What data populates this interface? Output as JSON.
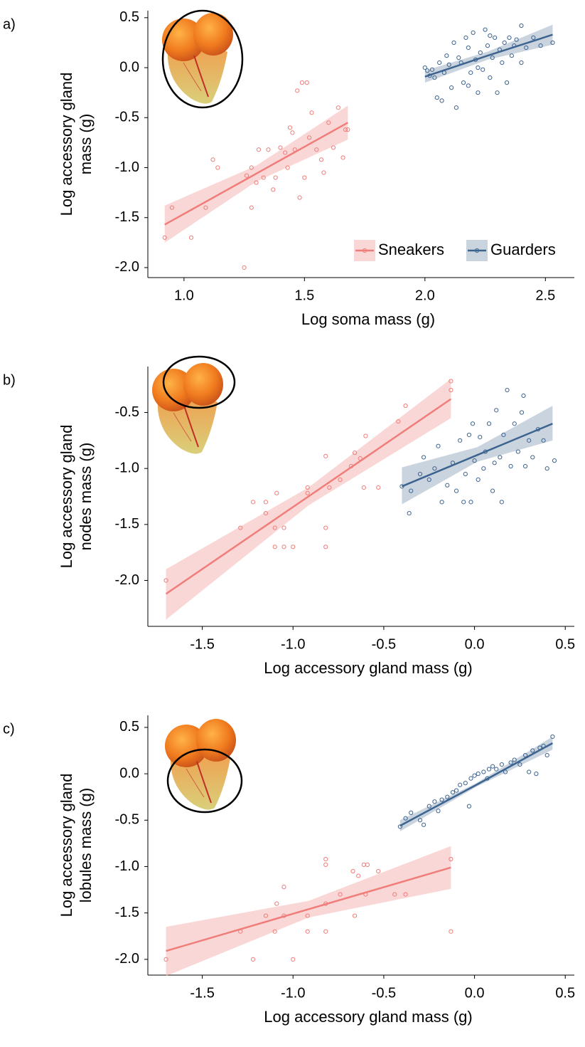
{
  "chart_data": [
    {
      "type": "scatter",
      "panel": "a)",
      "xlabel": "Log soma mass (g)",
      "ylabel": [
        "Log accessory gland",
        "mass (g)"
      ],
      "xlim": [
        0.85,
        2.62
      ],
      "ylim": [
        -2.1,
        0.57
      ],
      "xticks": [
        {
          "value": 1,
          "label": "1.0"
        },
        1.5,
        {
          "value": 2,
          "label": "2.0"
        },
        2.5
      ],
      "yticks": [
        0.5,
        {
          "value": 0,
          "label": "0.0"
        },
        -0.5,
        {
          "value": -1,
          "label": "-1.0"
        },
        -1.5,
        {
          "value": -2,
          "label": "-2.0"
        }
      ],
      "legend": "lower right",
      "series": [
        {
          "name": "Sneakers",
          "color": "#f07d7a",
          "band_color": "#f4b6b4",
          "x": [
            0.92,
            0.95,
            1.03,
            1.09,
            1.12,
            1.14,
            1.25,
            1.28,
            1.28,
            1.3,
            1.31,
            1.33,
            1.35,
            1.37,
            1.4,
            1.42,
            1.44,
            1.45,
            1.46,
            1.47,
            1.48,
            1.49,
            1.5,
            1.51,
            1.52,
            1.53,
            1.55,
            1.57,
            1.58,
            1.6,
            1.62,
            1.64,
            1.66,
            1.68,
            1.67,
            1.38,
            1.26,
            1.43
          ],
          "values": [
            -1.7,
            -1.4,
            -1.7,
            -1.4,
            -0.92,
            -1.0,
            -2.0,
            -1.4,
            -1.0,
            -1.15,
            -0.82,
            -1.1,
            -0.82,
            -1.22,
            -0.8,
            -0.85,
            -0.6,
            -0.65,
            -0.82,
            -0.23,
            -1.3,
            -0.15,
            -1.1,
            -0.15,
            -0.7,
            -0.45,
            -0.82,
            -0.92,
            -1.05,
            -0.55,
            -0.8,
            -0.4,
            -0.9,
            -0.62,
            -0.62,
            -1.1,
            -1.08,
            -1.0
          ],
          "fit": {
            "x": [
              0.92,
              1.3,
              1.68
            ],
            "y": [
              -1.57,
              -1.06,
              -0.55
            ],
            "lower": [
              -1.75,
              -1.14,
              -0.72
            ],
            "upper": [
              -1.38,
              -0.98,
              -0.38
            ]
          }
        },
        {
          "name": "Guarders",
          "color": "#3d6490",
          "band_color": "#9fb0c4",
          "x": [
            2.0,
            2.01,
            2.02,
            2.03,
            2.04,
            2.05,
            2.06,
            2.07,
            2.08,
            2.09,
            2.1,
            2.11,
            2.12,
            2.13,
            2.14,
            2.15,
            2.16,
            2.17,
            2.18,
            2.19,
            2.2,
            2.21,
            2.22,
            2.23,
            2.24,
            2.25,
            2.26,
            2.27,
            2.28,
            2.29,
            2.3,
            2.31,
            2.32,
            2.33,
            2.34,
            2.35,
            2.36,
            2.37,
            2.38,
            2.4,
            2.4,
            2.42,
            2.45,
            2.48,
            2.53,
            2.18,
            2.22,
            2.27
          ],
          "values": [
            0.0,
            -0.03,
            -0.08,
            -0.02,
            -0.1,
            -0.3,
            0.05,
            -0.33,
            -0.05,
            0.12,
            0.03,
            -0.2,
            0.25,
            -0.4,
            0.1,
            0.05,
            -0.15,
            0.3,
            0.2,
            -0.05,
            0.35,
            0.08,
            -0.25,
            0.15,
            -0.02,
            0.38,
            0.22,
            -0.1,
            0.1,
            0.3,
            -0.25,
            0.18,
            0.05,
            0.25,
            -0.15,
            0.3,
            0.12,
            0.22,
            0.28,
            0.42,
            0.05,
            0.2,
            0.3,
            0.22,
            0.25,
            -0.18,
            0.0,
            0.32
          ],
          "fit": {
            "x": [
              2.0,
              2.26,
              2.53
            ],
            "y": [
              -0.09,
              0.12,
              0.33
            ],
            "lower": [
              -0.15,
              0.08,
              0.23
            ],
            "upper": [
              -0.03,
              0.16,
              0.43
            ]
          }
        }
      ]
    },
    {
      "type": "scatter",
      "panel": "b)",
      "xlabel": "Log accessory gland mass (g)",
      "ylabel": [
        "Log accessory gland",
        "nodes mass (g)"
      ],
      "xlim": [
        -1.8,
        0.55
      ],
      "ylim": [
        -2.41,
        -0.09
      ],
      "xticks": [
        -1.5,
        {
          "value": -1,
          "label": "-1.0"
        },
        -0.5,
        {
          "value": 0,
          "label": "0.0"
        },
        0.5
      ],
      "yticks": [
        -0.5,
        {
          "value": -1,
          "label": "-1.0"
        },
        -1.5,
        {
          "value": -2,
          "label": "-2.0"
        }
      ],
      "series": [
        {
          "name": "Sneakers",
          "color": "#f07d7a",
          "band_color": "#f4b6b4",
          "x": [
            -1.7,
            -1.29,
            -1.22,
            -1.15,
            -1.15,
            -1.1,
            -1.1,
            -1.09,
            -1.05,
            -1.05,
            -1.0,
            -0.92,
            -0.92,
            -0.82,
            -0.82,
            -0.82,
            -0.8,
            -0.74,
            -0.68,
            -0.66,
            -0.63,
            -0.61,
            -0.6,
            -0.53,
            -0.42,
            -0.38,
            -0.13,
            -0.13
          ],
          "values": [
            -2.0,
            -1.53,
            -1.3,
            -1.4,
            -1.3,
            -1.53,
            -1.7,
            -1.22,
            -1.7,
            -1.53,
            -1.7,
            -1.22,
            -1.17,
            -1.53,
            -1.7,
            -0.89,
            -1.17,
            -1.1,
            -0.98,
            -0.86,
            -0.91,
            -1.17,
            -0.71,
            -1.17,
            -0.58,
            -0.44,
            -0.22,
            -0.3
          ],
          "fit": {
            "x": [
              -1.7,
              -0.915,
              -0.13
            ],
            "y": [
              -2.12,
              -1.25,
              -0.38
            ],
            "lower": [
              -2.35,
              -1.33,
              -0.55
            ],
            "upper": [
              -1.9,
              -1.17,
              -0.2
            ]
          }
        },
        {
          "name": "Guarders",
          "color": "#3d6490",
          "band_color": "#9fb0c4",
          "x": [
            -0.4,
            -0.36,
            -0.35,
            -0.3,
            -0.28,
            -0.25,
            -0.22,
            -0.2,
            -0.18,
            -0.15,
            -0.12,
            -0.1,
            -0.08,
            -0.06,
            -0.05,
            -0.03,
            -0.02,
            0.0,
            0.02,
            0.03,
            0.05,
            0.06,
            0.08,
            0.1,
            0.12,
            0.14,
            0.15,
            0.16,
            0.18,
            0.2,
            0.22,
            0.24,
            0.26,
            0.27,
            0.28,
            0.3,
            0.32,
            0.35,
            0.38,
            0.4,
            0.44,
            0.11,
            -0.01
          ],
          "values": [
            -1.16,
            -1.4,
            -1.2,
            -1.05,
            -0.9,
            -1.1,
            -1.0,
            -0.8,
            -1.3,
            -1.15,
            -0.95,
            -1.2,
            -0.75,
            -1.3,
            -1.05,
            -0.7,
            -1.3,
            -0.93,
            -1.1,
            -0.72,
            -1.0,
            -0.85,
            -0.6,
            -1.2,
            -0.48,
            -0.9,
            -1.3,
            -0.7,
            -0.3,
            -0.98,
            -0.6,
            -0.85,
            -0.5,
            -0.35,
            -0.98,
            -0.75,
            -0.9,
            -0.65,
            -0.75,
            -1.0,
            -0.93,
            -0.95,
            -0.6
          ],
          "fit": {
            "x": [
              -0.4,
              0.015,
              0.43
            ],
            "y": [
              -1.16,
              -0.88,
              -0.6
            ],
            "lower": [
              -1.32,
              -0.94,
              -0.75
            ],
            "upper": [
              -0.99,
              -0.81,
              -0.44
            ]
          }
        }
      ]
    },
    {
      "type": "scatter",
      "panel": "c)",
      "xlabel": "Log accessory gland mass (g)",
      "ylabel": [
        "Log accessory gland",
        "lobules mass (g)"
      ],
      "xlim": [
        -1.8,
        0.55
      ],
      "ylim": [
        -2.17,
        0.63
      ],
      "xticks": [
        -1.5,
        {
          "value": -1,
          "label": "-1.0"
        },
        -0.5,
        {
          "value": 0,
          "label": "0.0"
        },
        0.5
      ],
      "yticks": [
        0.5,
        {
          "value": 0,
          "label": "0.0"
        },
        -0.5,
        {
          "value": -1,
          "label": "-1.0"
        },
        -1.5,
        {
          "value": -2,
          "label": "-2.0"
        }
      ],
      "series": [
        {
          "name": "Sneakers",
          "color": "#f07d7a",
          "band_color": "#f4b6b4",
          "x": [
            -1.7,
            -1.29,
            -1.22,
            -1.15,
            -1.1,
            -1.09,
            -1.05,
            -1.05,
            -1.0,
            -0.92,
            -0.92,
            -0.82,
            -0.82,
            -0.82,
            -0.82,
            -0.74,
            -0.67,
            -0.66,
            -0.64,
            -0.61,
            -0.59,
            -0.6,
            -0.53,
            -0.44,
            -0.38,
            -0.13,
            -0.13
          ],
          "values": [
            -2.0,
            -1.7,
            -2.0,
            -1.53,
            -1.7,
            -1.4,
            -1.22,
            -1.53,
            -2.0,
            -1.7,
            -1.53,
            -0.92,
            -0.98,
            -1.7,
            -1.4,
            -1.3,
            -1.05,
            -1.53,
            -1.1,
            -0.98,
            -0.98,
            -1.3,
            -1.05,
            -1.3,
            -1.3,
            -0.92,
            -1.7
          ],
          "fit": {
            "x": [
              -1.7,
              -0.915,
              -0.13
            ],
            "y": [
              -1.91,
              -1.46,
              -1.01
            ],
            "lower": [
              -2.18,
              -1.55,
              -1.24
            ],
            "upper": [
              -1.65,
              -1.37,
              -0.78
            ]
          }
        },
        {
          "name": "Guarders",
          "color": "#3d6490",
          "band_color": "#9fb0c4",
          "x": [
            -0.41,
            -0.38,
            -0.35,
            -0.3,
            -0.28,
            -0.25,
            -0.22,
            -0.2,
            -0.18,
            -0.15,
            -0.12,
            -0.1,
            -0.08,
            -0.05,
            -0.03,
            -0.02,
            0.0,
            0.02,
            0.05,
            0.07,
            0.08,
            0.1,
            0.12,
            0.15,
            0.17,
            0.2,
            0.22,
            0.25,
            0.28,
            0.3,
            0.32,
            0.34,
            0.36,
            0.38,
            0.4,
            0.43
          ],
          "values": [
            -0.57,
            -0.48,
            -0.42,
            -0.5,
            -0.55,
            -0.35,
            -0.3,
            -0.4,
            -0.28,
            -0.25,
            -0.2,
            -0.18,
            -0.12,
            -0.1,
            -0.35,
            -0.05,
            -0.02,
            0.0,
            0.02,
            -0.05,
            0.05,
            0.08,
            0.05,
            0.1,
            0.02,
            0.12,
            0.15,
            0.1,
            0.2,
            0.02,
            0.25,
            0.0,
            0.28,
            0.3,
            0.2,
            0.4
          ],
          "fit": {
            "x": [
              -0.41,
              0.01,
              0.43
            ],
            "y": [
              -0.56,
              -0.12,
              0.33
            ],
            "lower": [
              -0.62,
              -0.14,
              0.26
            ],
            "upper": [
              -0.5,
              -0.1,
              0.4
            ]
          }
        }
      ]
    }
  ]
}
